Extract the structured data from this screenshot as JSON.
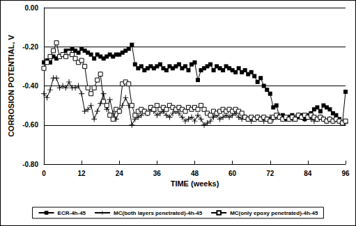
{
  "chart_data": {
    "type": "line",
    "xlabel": "TIME (weeks)",
    "ylabel": "CORROSION POTENTIAL, V",
    "x": [
      0,
      1,
      2,
      3,
      4,
      5,
      6,
      7,
      8,
      9,
      10,
      11,
      12,
      13,
      14,
      15,
      16,
      17,
      18,
      19,
      20,
      21,
      22,
      23,
      24,
      25,
      26,
      27,
      28,
      29,
      30,
      31,
      32,
      33,
      34,
      35,
      36,
      37,
      38,
      39,
      40,
      41,
      42,
      43,
      44,
      45,
      46,
      47,
      48,
      49,
      50,
      51,
      52,
      53,
      54,
      55,
      56,
      57,
      58,
      59,
      60,
      61,
      62,
      63,
      64,
      65,
      66,
      67,
      68,
      69,
      70,
      71,
      72,
      73,
      74,
      75,
      76,
      77,
      78,
      79,
      80,
      81,
      82,
      83,
      84,
      85,
      86,
      87,
      88,
      89,
      90,
      91,
      92,
      93,
      94,
      95,
      96
    ],
    "series": [
      {
        "name": "ECR-4h-45",
        "color": "#000000",
        "marker": "square",
        "values": [
          -0.28,
          -0.27,
          -0.28,
          -0.25,
          -0.26,
          -0.25,
          -0.24,
          -0.22,
          -0.22,
          -0.21,
          -0.22,
          -0.23,
          -0.21,
          -0.22,
          -0.23,
          -0.24,
          -0.26,
          -0.24,
          -0.25,
          -0.26,
          -0.25,
          -0.24,
          -0.25,
          -0.24,
          -0.24,
          -0.23,
          -0.22,
          -0.21,
          -0.19,
          -0.29,
          -0.31,
          -0.3,
          -0.32,
          -0.31,
          -0.3,
          -0.31,
          -0.3,
          -0.29,
          -0.31,
          -0.32,
          -0.3,
          -0.31,
          -0.3,
          -0.29,
          -0.31,
          -0.3,
          -0.32,
          -0.29,
          -0.28,
          -0.37,
          -0.32,
          -0.31,
          -0.3,
          -0.29,
          -0.32,
          -0.3,
          -0.31,
          -0.32,
          -0.3,
          -0.31,
          -0.32,
          -0.33,
          -0.31,
          -0.33,
          -0.32,
          -0.34,
          -0.33,
          -0.35,
          -0.38,
          -0.36,
          -0.4,
          -0.42,
          -0.44,
          -0.51,
          -0.5,
          -0.56,
          -0.55,
          -0.57,
          -0.56,
          -0.55,
          -0.57,
          -0.56,
          -0.55,
          -0.57,
          -0.55,
          -0.54,
          -0.52,
          -0.51,
          -0.53,
          -0.5,
          -0.51,
          -0.52,
          -0.54,
          -0.55,
          -0.57,
          -0.59,
          -0.43
        ]
      },
      {
        "name": "MC(both layers penetrated)-4h-45",
        "color": "#000000",
        "marker": "plus",
        "values": [
          -0.44,
          -0.46,
          -0.42,
          -0.36,
          -0.36,
          -0.41,
          -0.4,
          -0.41,
          -0.38,
          -0.41,
          -0.41,
          -0.4,
          -0.44,
          -0.53,
          -0.52,
          -0.5,
          -0.57,
          -0.53,
          -0.49,
          -0.44,
          -0.52,
          -0.47,
          -0.54,
          -0.57,
          -0.53,
          -0.5,
          -0.46,
          -0.5,
          -0.6,
          -0.57,
          -0.56,
          -0.55,
          -0.53,
          -0.54,
          -0.52,
          -0.53,
          -0.55,
          -0.54,
          -0.53,
          -0.55,
          -0.56,
          -0.54,
          -0.53,
          -0.54,
          -0.56,
          -0.58,
          -0.57,
          -0.56,
          -0.58,
          -0.55,
          -0.57,
          -0.6,
          -0.59,
          -0.58,
          -0.56,
          -0.55,
          -0.57,
          -0.56,
          -0.55,
          -0.56,
          -0.55,
          -0.54,
          -0.56,
          -0.57,
          -0.56,
          -0.57,
          -0.58,
          -0.57,
          -0.56,
          -0.57,
          -0.58,
          -0.57,
          -0.56,
          -0.57,
          -0.56,
          -0.55,
          -0.56,
          -0.57,
          -0.56,
          -0.57,
          -0.56,
          -0.55,
          -0.56,
          -0.57,
          -0.56,
          -0.57,
          -0.58,
          -0.57,
          -0.56,
          -0.57,
          -0.58,
          -0.57,
          -0.58,
          -0.57,
          -0.58,
          -0.59,
          -0.59
        ]
      },
      {
        "name": "MC(only epoxy penetrated)-4h-45",
        "color": "#000000",
        "marker": "open square",
        "values": [
          -0.31,
          -0.28,
          -0.25,
          -0.22,
          -0.18,
          -0.25,
          -0.24,
          -0.25,
          -0.23,
          -0.24,
          -0.26,
          -0.28,
          -0.27,
          -0.3,
          -0.41,
          -0.44,
          -0.41,
          -0.37,
          -0.34,
          -0.48,
          -0.5,
          -0.55,
          -0.57,
          -0.52,
          -0.53,
          -0.39,
          -0.38,
          -0.39,
          -0.5,
          -0.55,
          -0.53,
          -0.52,
          -0.53,
          -0.54,
          -0.51,
          -0.52,
          -0.5,
          -0.52,
          -0.51,
          -0.52,
          -0.5,
          -0.51,
          -0.52,
          -0.51,
          -0.52,
          -0.53,
          -0.51,
          -0.52,
          -0.51,
          -0.52,
          -0.5,
          -0.52,
          -0.54,
          -0.55,
          -0.53,
          -0.54,
          -0.53,
          -0.52,
          -0.53,
          -0.52,
          -0.53,
          -0.52,
          -0.53,
          -0.54,
          -0.56,
          -0.57,
          -0.56,
          -0.57,
          -0.56,
          -0.57,
          -0.56,
          -0.57,
          -0.58,
          -0.56,
          -0.55,
          -0.56,
          -0.57,
          -0.56,
          -0.57,
          -0.56,
          -0.57,
          -0.55,
          -0.56,
          -0.55,
          -0.56,
          -0.55,
          -0.56,
          -0.57,
          -0.56,
          -0.57,
          -0.58,
          -0.57,
          -0.58,
          -0.57,
          -0.58,
          -0.59,
          -0.58
        ]
      }
    ],
    "xlim": [
      0,
      96
    ],
    "xticks": [
      0,
      12,
      24,
      36,
      48,
      60,
      72,
      84,
      96
    ],
    "ylim": [
      -0.8,
      0
    ],
    "yticks": [
      {
        "value": -0.8,
        "label": "-0.80"
      },
      {
        "value": -0.6,
        "label": "-0.60"
      },
      {
        "value": -0.4,
        "label": "-0.40"
      },
      {
        "value": -0.2,
        "label": "-0.20"
      },
      {
        "value": 0,
        "label": "0.00"
      }
    ],
    "grid": true,
    "legend": "bottom"
  }
}
